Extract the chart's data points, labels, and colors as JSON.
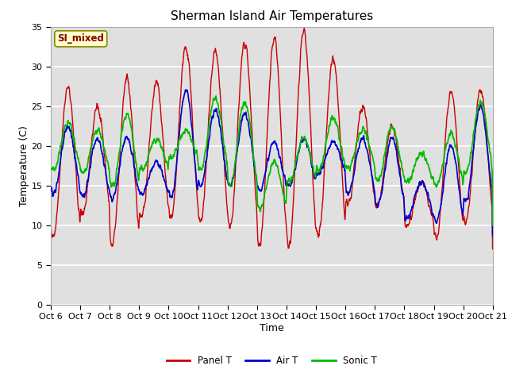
{
  "title": "Sherman Island Air Temperatures",
  "xlabel": "Time",
  "ylabel": "Temperature (C)",
  "ylim": [
    0,
    35
  ],
  "yticks": [
    0,
    5,
    10,
    15,
    20,
    25,
    30,
    35
  ],
  "x_tick_labels": [
    "Oct 6",
    "Oct 7",
    "Oct 8",
    "Oct 9",
    "Oct 10",
    "Oct 11",
    "Oct 12",
    "Oct 13",
    "Oct 14",
    "Oct 15",
    "Oct 16",
    "Oct 17",
    "Oct 18",
    "Oct 19",
    "Oct 20",
    "Oct 21"
  ],
  "panel_color": "#cc0000",
  "air_color": "#0000cc",
  "sonic_color": "#00bb00",
  "bg_color": "#e0e0e0",
  "label_box_text": "SI_mixed",
  "label_box_bg": "#ffffcc",
  "label_box_edge": "#888800",
  "label_text_color": "#880000",
  "legend_labels": [
    "Panel T",
    "Air T",
    "Sonic T"
  ],
  "title_fontsize": 11,
  "axis_fontsize": 9,
  "tick_fontsize": 8,
  "figsize": [
    6.4,
    4.8
  ],
  "dpi": 100
}
